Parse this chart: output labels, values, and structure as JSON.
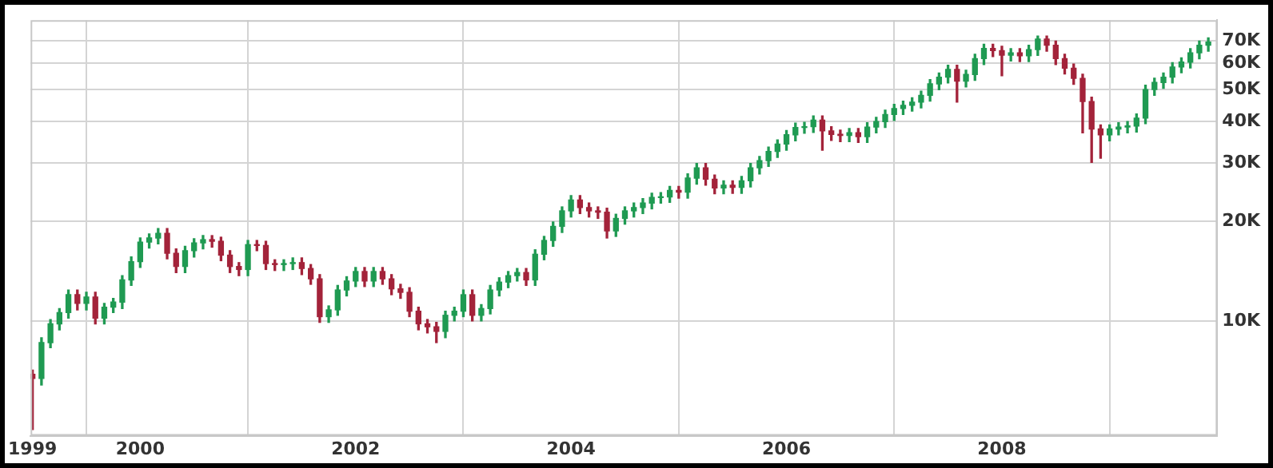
{
  "chart_data": {
    "type": "candlestick",
    "log": "y",
    "grid": true,
    "legend": false,
    "xlim": [
      "1998-12-25",
      "2010-01-01"
    ],
    "xticks": [
      {
        "value": "1999-01",
        "label": "1999"
      },
      {
        "value": "2000-01",
        "label": "2000"
      },
      {
        "value": "2002-01",
        "label": "2002"
      },
      {
        "value": "2004-01",
        "label": "2004"
      },
      {
        "value": "2006-01",
        "label": "2006"
      },
      {
        "value": "2008-01",
        "label": "2008"
      }
    ],
    "ylim": [
      4500,
      81000
    ],
    "yticks": [
      {
        "value": 10000,
        "label": "10K"
      },
      {
        "value": 20000,
        "label": "20K"
      },
      {
        "value": 30000,
        "label": "30K"
      },
      {
        "value": 40000,
        "label": "40K"
      },
      {
        "value": 50000,
        "label": "50K"
      },
      {
        "value": 60000,
        "label": "60K"
      },
      {
        "value": 70000,
        "label": "70K"
      }
    ],
    "x": [
      "1999-01",
      "1999-02",
      "1999-03",
      "1999-04",
      "1999-05",
      "1999-06",
      "1999-07",
      "1999-08",
      "1999-09",
      "1999-10",
      "1999-11",
      "1999-12",
      "2000-01",
      "2000-02",
      "2000-03",
      "2000-04",
      "2000-05",
      "2000-06",
      "2000-07",
      "2000-08",
      "2000-09",
      "2000-10",
      "2000-11",
      "2000-12",
      "2001-01",
      "2001-02",
      "2001-03",
      "2001-04",
      "2001-05",
      "2001-06",
      "2001-07",
      "2001-08",
      "2001-09",
      "2001-10",
      "2001-11",
      "2001-12",
      "2002-01",
      "2002-02",
      "2002-03",
      "2002-04",
      "2002-05",
      "2002-06",
      "2002-07",
      "2002-08",
      "2002-09",
      "2002-10",
      "2002-11",
      "2002-12",
      "2003-01",
      "2003-02",
      "2003-03",
      "2003-04",
      "2003-05",
      "2003-06",
      "2003-07",
      "2003-08",
      "2003-09",
      "2003-10",
      "2003-11",
      "2003-12",
      "2004-01",
      "2004-02",
      "2004-03",
      "2004-04",
      "2004-05",
      "2004-06",
      "2004-07",
      "2004-08",
      "2004-09",
      "2004-10",
      "2004-11",
      "2004-12",
      "2005-01",
      "2005-02",
      "2005-03",
      "2005-04",
      "2005-05",
      "2005-06",
      "2005-07",
      "2005-08",
      "2005-09",
      "2005-10",
      "2005-11",
      "2005-12",
      "2006-01",
      "2006-02",
      "2006-03",
      "2006-04",
      "2006-05",
      "2006-06",
      "2006-07",
      "2006-08",
      "2006-09",
      "2006-10",
      "2006-11",
      "2006-12",
      "2007-01",
      "2007-02",
      "2007-03",
      "2007-04",
      "2007-05",
      "2007-06",
      "2007-07",
      "2007-08",
      "2007-09",
      "2007-10",
      "2007-11",
      "2007-12",
      "2008-01",
      "2008-02",
      "2008-03",
      "2008-04",
      "2008-05",
      "2008-06",
      "2008-07",
      "2008-08",
      "2008-09",
      "2008-10",
      "2008-11",
      "2008-12",
      "2009-01",
      "2009-02",
      "2009-03",
      "2009-04",
      "2009-05",
      "2009-06",
      "2009-07",
      "2009-08",
      "2009-09",
      "2009-10",
      "2009-11",
      "2009-12"
    ],
    "ohlc": [
      [
        6900,
        7100,
        4700,
        6700
      ],
      [
        6700,
        8900,
        6400,
        8600
      ],
      [
        8600,
        10100,
        8300,
        9800
      ],
      [
        9800,
        10900,
        9400,
        10600
      ],
      [
        10600,
        12400,
        10200,
        12000
      ],
      [
        12000,
        12400,
        10800,
        11300
      ],
      [
        11300,
        12200,
        10800,
        11800
      ],
      [
        11800,
        12200,
        9800,
        10200
      ],
      [
        10200,
        11300,
        9800,
        11000
      ],
      [
        11000,
        11700,
        10600,
        11400
      ],
      [
        11400,
        13700,
        10900,
        13300
      ],
      [
        13300,
        15600,
        12800,
        15100
      ],
      [
        15100,
        17800,
        14500,
        17300
      ],
      [
        17300,
        18300,
        16600,
        17800
      ],
      [
        17800,
        19000,
        17100,
        18400
      ],
      [
        18400,
        19000,
        15400,
        16000
      ],
      [
        16000,
        16500,
        14000,
        14600
      ],
      [
        14600,
        16800,
        14000,
        16300
      ],
      [
        16300,
        17700,
        15600,
        17200
      ],
      [
        17200,
        18100,
        16500,
        17600
      ],
      [
        17600,
        18100,
        16700,
        17400
      ],
      [
        17400,
        17900,
        15200,
        15800
      ],
      [
        15800,
        16300,
        14000,
        14600
      ],
      [
        14600,
        15000,
        13700,
        14300
      ],
      [
        14300,
        17500,
        13700,
        17000
      ],
      [
        17000,
        17500,
        16300,
        16900
      ],
      [
        16900,
        17400,
        14300,
        14900
      ],
      [
        14900,
        15300,
        14200,
        14800
      ],
      [
        14800,
        15300,
        14200,
        14900
      ],
      [
        14900,
        15500,
        14300,
        15000
      ],
      [
        15000,
        15500,
        13800,
        14400
      ],
      [
        14400,
        14800,
        12900,
        13400
      ],
      [
        13400,
        13800,
        9900,
        10300
      ],
      [
        10300,
        11100,
        9900,
        10800
      ],
      [
        10800,
        12800,
        10400,
        12400
      ],
      [
        12400,
        13600,
        11900,
        13200
      ],
      [
        13200,
        14500,
        12700,
        14100
      ],
      [
        14100,
        14500,
        12700,
        13200
      ],
      [
        13200,
        14500,
        12700,
        14100
      ],
      [
        14100,
        14500,
        12900,
        13400
      ],
      [
        13400,
        13800,
        12000,
        12500
      ],
      [
        12500,
        12900,
        11700,
        12200
      ],
      [
        12200,
        12600,
        10300,
        10700
      ],
      [
        10700,
        11000,
        9400,
        9800
      ],
      [
        9800,
        10100,
        9200,
        9600
      ],
      [
        9600,
        9900,
        8600,
        9300
      ],
      [
        9300,
        10700,
        8900,
        10400
      ],
      [
        10400,
        11000,
        10000,
        10700
      ],
      [
        10700,
        12400,
        10300,
        12000
      ],
      [
        12000,
        12400,
        10000,
        10400
      ],
      [
        10400,
        11200,
        10000,
        10900
      ],
      [
        10900,
        12800,
        10500,
        12400
      ],
      [
        12400,
        13500,
        11900,
        13100
      ],
      [
        13100,
        14100,
        12600,
        13700
      ],
      [
        13700,
        14400,
        13200,
        14000
      ],
      [
        14000,
        14400,
        12800,
        13300
      ],
      [
        13300,
        16400,
        12800,
        15900
      ],
      [
        15900,
        18000,
        15300,
        17500
      ],
      [
        17500,
        19900,
        16800,
        19300
      ],
      [
        19300,
        22100,
        18500,
        21500
      ],
      [
        21500,
        23900,
        20600,
        23200
      ],
      [
        23200,
        23900,
        21100,
        22000
      ],
      [
        22000,
        22700,
        20600,
        21500
      ],
      [
        21500,
        22100,
        20400,
        21300
      ],
      [
        21300,
        21900,
        17800,
        18700
      ],
      [
        18700,
        21000,
        18000,
        20400
      ],
      [
        20400,
        22100,
        19600,
        21500
      ],
      [
        21500,
        22700,
        20600,
        22000
      ],
      [
        22000,
        23400,
        21100,
        22700
      ],
      [
        22700,
        24300,
        21800,
        23600
      ],
      [
        23600,
        24400,
        22700,
        23700
      ],
      [
        23700,
        25500,
        22800,
        24800
      ],
      [
        24800,
        25500,
        23500,
        24500
      ],
      [
        24500,
        27800,
        23500,
        27000
      ],
      [
        27000,
        29900,
        25900,
        29000
      ],
      [
        29000,
        29900,
        25700,
        26800
      ],
      [
        26800,
        27600,
        24200,
        25200
      ],
      [
        25200,
        26500,
        24200,
        25700
      ],
      [
        25700,
        26500,
        24300,
        25300
      ],
      [
        25300,
        27300,
        24300,
        26500
      ],
      [
        26500,
        29900,
        25400,
        29000
      ],
      [
        29000,
        31400,
        27800,
        30500
      ],
      [
        30500,
        33500,
        29300,
        32500
      ],
      [
        32500,
        35200,
        31200,
        34200
      ],
      [
        34200,
        37600,
        32800,
        36500
      ],
      [
        36500,
        39600,
        35000,
        38400
      ],
      [
        38400,
        39800,
        36900,
        38600
      ],
      [
        38600,
        41600,
        37100,
        40400
      ],
      [
        40400,
        41600,
        32800,
        37500
      ],
      [
        37500,
        38600,
        35100,
        36600
      ],
      [
        36600,
        37700,
        34800,
        36300
      ],
      [
        36300,
        38100,
        34800,
        37000
      ],
      [
        37000,
        38100,
        34600,
        36000
      ],
      [
        36000,
        39700,
        34600,
        38500
      ],
      [
        38500,
        41200,
        37000,
        40000
      ],
      [
        40000,
        43300,
        38400,
        42000
      ],
      [
        42000,
        45100,
        40300,
        43800
      ],
      [
        43800,
        46100,
        42000,
        44800
      ],
      [
        44800,
        47200,
        43000,
        45800
      ],
      [
        45800,
        49400,
        44000,
        48000
      ],
      [
        48000,
        53600,
        46100,
        52000
      ],
      [
        52000,
        56100,
        49900,
        54500
      ],
      [
        54500,
        59200,
        52300,
        57500
      ],
      [
        57500,
        59200,
        45800,
        53000
      ],
      [
        53000,
        57200,
        50900,
        55500
      ],
      [
        55500,
        63900,
        53300,
        62000
      ],
      [
        62000,
        68500,
        59500,
        66500
      ],
      [
        66500,
        68500,
        62900,
        65500
      ],
      [
        65500,
        67500,
        55000,
        63500
      ],
      [
        63500,
        66400,
        61000,
        64500
      ],
      [
        64500,
        66400,
        60700,
        63200
      ],
      [
        63200,
        68000,
        60700,
        66000
      ],
      [
        66000,
        72500,
        63400,
        71000
      ],
      [
        71000,
        72500,
        65300,
        68000
      ],
      [
        68000,
        70000,
        59500,
        62000
      ],
      [
        62000,
        63900,
        55700,
        58000
      ],
      [
        58000,
        59700,
        51800,
        54000
      ],
      [
        54000,
        55600,
        37000,
        46000
      ],
      [
        46000,
        47400,
        30100,
        38000
      ],
      [
        38000,
        39100,
        31000,
        36500
      ],
      [
        36500,
        39100,
        35000,
        38000
      ],
      [
        38000,
        39700,
        36500,
        38500
      ],
      [
        38500,
        40000,
        37000,
        38800
      ],
      [
        38800,
        42200,
        37200,
        41000
      ],
      [
        41000,
        51500,
        39400,
        50000
      ],
      [
        50000,
        54100,
        48000,
        52500
      ],
      [
        52500,
        56100,
        50400,
        54500
      ],
      [
        54500,
        60300,
        52300,
        58500
      ],
      [
        58500,
        62300,
        56200,
        60500
      ],
      [
        60500,
        66400,
        58100,
        64500
      ],
      [
        64500,
        70000,
        61900,
        68000
      ],
      [
        68000,
        71600,
        65300,
        69500
      ]
    ],
    "colors": [
      "#a3233a",
      "#1f9a52",
      "#1f9a52",
      "#1f9a52",
      "#1f9a52",
      "#a3233a",
      "#1f9a52",
      "#a3233a",
      "#1f9a52",
      "#1f9a52",
      "#1f9a52",
      "#1f9a52",
      "#1f9a52",
      "#1f9a52",
      "#1f9a52",
      "#a3233a",
      "#a3233a",
      "#1f9a52",
      "#1f9a52",
      "#1f9a52",
      "#a3233a",
      "#a3233a",
      "#a3233a",
      "#a3233a",
      "#1f9a52",
      "#a3233a",
      "#a3233a",
      "#a3233a",
      "#1f9a52",
      "#1f9a52",
      "#a3233a",
      "#a3233a",
      "#a3233a",
      "#1f9a52",
      "#1f9a52",
      "#1f9a52",
      "#1f9a52",
      "#a3233a",
      "#1f9a52",
      "#a3233a",
      "#a3233a",
      "#a3233a",
      "#a3233a",
      "#a3233a",
      "#a3233a",
      "#a3233a",
      "#1f9a52",
      "#1f9a52",
      "#1f9a52",
      "#a3233a",
      "#1f9a52",
      "#1f9a52",
      "#1f9a52",
      "#1f9a52",
      "#1f9a52",
      "#a3233a",
      "#1f9a52",
      "#1f9a52",
      "#1f9a52",
      "#1f9a52",
      "#1f9a52",
      "#a3233a",
      "#a3233a",
      "#a3233a",
      "#a3233a",
      "#1f9a52",
      "#1f9a52",
      "#1f9a52",
      "#1f9a52",
      "#1f9a52",
      "#1f9a52",
      "#1f9a52",
      "#a3233a",
      "#1f9a52",
      "#1f9a52",
      "#a3233a",
      "#a3233a",
      "#1f9a52",
      "#a3233a",
      "#1f9a52",
      "#1f9a52",
      "#1f9a52",
      "#1f9a52",
      "#1f9a52",
      "#1f9a52",
      "#1f9a52",
      "#1f9a52",
      "#1f9a52",
      "#a3233a",
      "#a3233a",
      "#a3233a",
      "#1f9a52",
      "#a3233a",
      "#1f9a52",
      "#1f9a52",
      "#1f9a52",
      "#1f9a52",
      "#1f9a52",
      "#1f9a52",
      "#1f9a52",
      "#1f9a52",
      "#1f9a52",
      "#1f9a52",
      "#a3233a",
      "#1f9a52",
      "#1f9a52",
      "#1f9a52",
      "#a3233a",
      "#a3233a",
      "#1f9a52",
      "#a3233a",
      "#1f9a52",
      "#1f9a52",
      "#a3233a",
      "#a3233a",
      "#a3233a",
      "#a3233a",
      "#a3233a",
      "#a3233a",
      "#a3233a",
      "#1f9a52",
      "#1f9a52",
      "#1f9a52",
      "#1f9a52",
      "#1f9a52",
      "#1f9a52",
      "#1f9a52",
      "#1f9a52",
      "#1f9a52",
      "#1f9a52",
      "#1f9a52",
      "#1f9a52"
    ]
  }
}
